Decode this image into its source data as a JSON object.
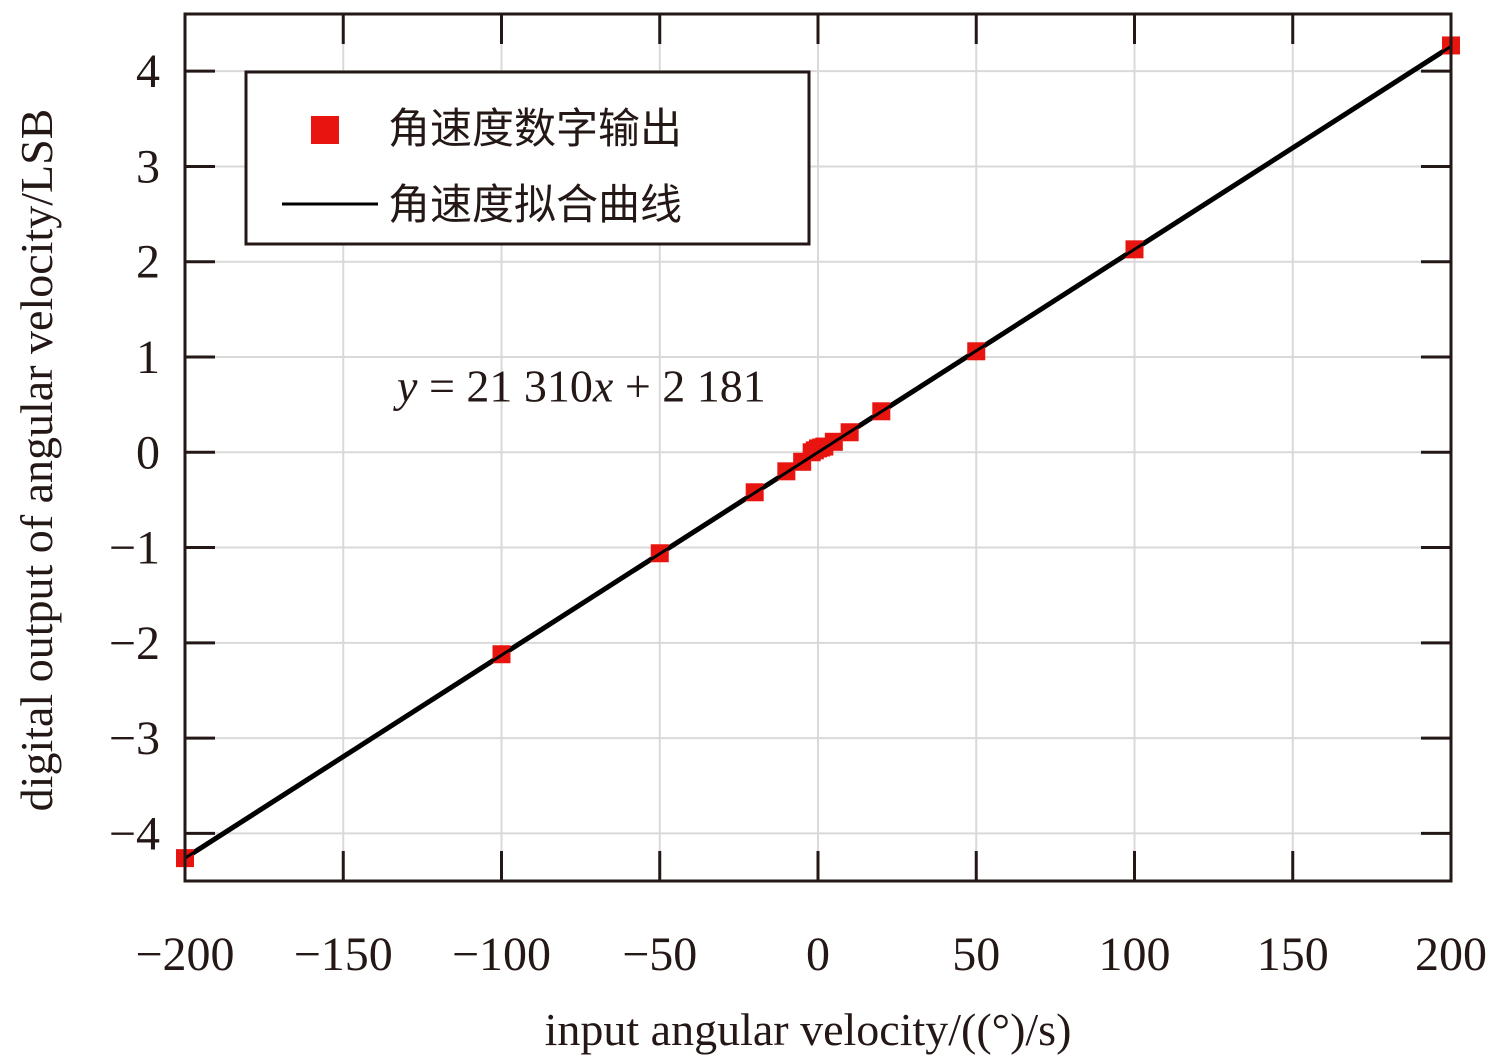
{
  "chart_data": {
    "type": "scatter",
    "xlabel": "input angular velocity/((°)/s)",
    "ylabel": "digital output of angular velocity/LSB",
    "xlim": [
      -200,
      200
    ],
    "ylim": [
      -4.5,
      4.6
    ],
    "xticks": [
      -200,
      -150,
      -100,
      -50,
      0,
      50,
      100,
      150,
      200
    ],
    "yticks": [
      -4,
      -3,
      -2,
      -1,
      0,
      1,
      2,
      3,
      4
    ],
    "grid": true,
    "legend_position": "top-left",
    "colors": {
      "marker": "#e8140f",
      "fit_line": "#000000",
      "frame": "#231815",
      "grid": "#d9d9d9"
    },
    "series": [
      {
        "name": "角速度数字输出",
        "kind": "markers",
        "x": [
          -200,
          -100,
          -50,
          -20,
          -10,
          -5,
          -2,
          -1,
          0,
          1,
          2,
          5,
          10,
          20,
          50,
          100,
          200
        ],
        "y": [
          -4.26,
          -2.12,
          -1.06,
          -0.42,
          -0.2,
          -0.1,
          0,
          0.02,
          0.04,
          0.05,
          0.06,
          0.11,
          0.21,
          0.43,
          1.06,
          2.13,
          4.27
        ]
      },
      {
        "name": "角速度拟合曲线",
        "kind": "line",
        "x": [
          -200,
          200
        ],
        "y": [
          -4.26,
          4.26
        ]
      }
    ],
    "annotations": [
      {
        "text_var": "y",
        "text_rest": " = 21 310",
        "text_var2": "x",
        "text_tail": " + 2 181",
        "x": -133,
        "y": 0.7
      }
    ]
  }
}
